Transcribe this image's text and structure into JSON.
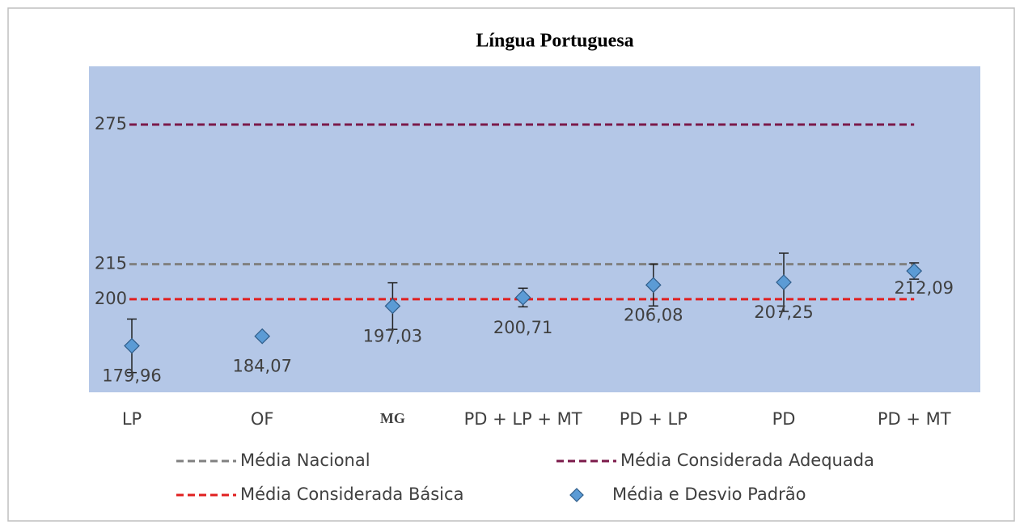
{
  "chart_data": {
    "type": "errorbar",
    "title": "Língua Portuguesa",
    "categories": [
      "LP",
      "OF",
      "MG",
      "PD + LP + MT",
      "PD + LP",
      "PD",
      "PD + MT"
    ],
    "series": [
      {
        "name": "Média e Desvio Padrão",
        "color": "#5b9bd5",
        "values": [
          179.96,
          184.07,
          197.03,
          200.71,
          206.08,
          207.25,
          212.09
        ],
        "value_labels": [
          "179,96",
          "184,07",
          "197,03",
          "200,71",
          "206,08",
          "207,25",
          "212,09"
        ],
        "errors": [
          11.5,
          null,
          10,
          4,
          9,
          12.5,
          3.5
        ]
      }
    ],
    "reference_lines": [
      {
        "name": "Média Nacional",
        "value": 215,
        "color": "#808080"
      },
      {
        "name": "Média Considerada Adequada",
        "value": 275,
        "color": "#7b1a4a"
      },
      {
        "name": "Média Considerada Básica",
        "value": 200,
        "color": "#e02020"
      }
    ],
    "ylim": [
      160,
      300
    ],
    "yticks": [
      200,
      215,
      275
    ],
    "plot_background": "#b4c7e7"
  }
}
